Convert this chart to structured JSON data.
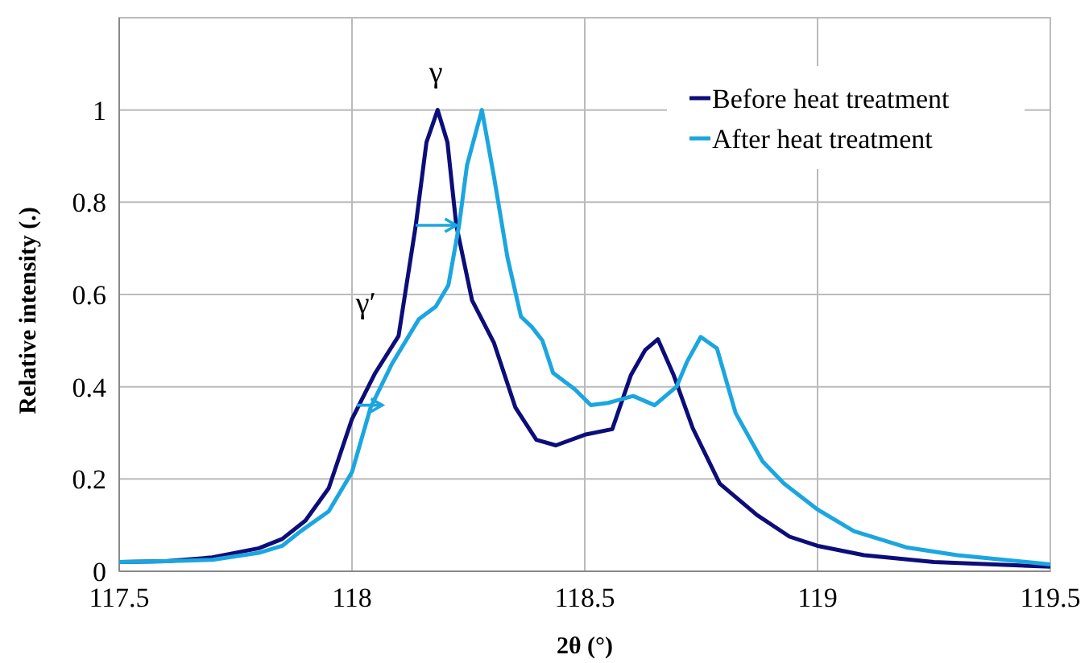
{
  "chart_data": {
    "type": "line",
    "xlabel": "2θ (°)",
    "ylabel": "Relative intensity (.)",
    "xlim": [
      117.5,
      119.5
    ],
    "xticks": [
      117.5,
      118,
      118.5,
      119,
      119.5
    ],
    "ylim": [
      0,
      1.2
    ],
    "yticks": [
      0,
      0.2,
      0.4,
      0.6,
      0.8,
      1
    ],
    "grid": true,
    "legend": "top right",
    "annotations": [
      "γ",
      "γ′"
    ],
    "series": [
      {
        "name": "Before heat treatment",
        "color": "#0d0d7a",
        "x": [
          117.5,
          117.6,
          117.7,
          117.8,
          117.85,
          117.9,
          117.95,
          118.0,
          118.05,
          118.1,
          118.137,
          118.16,
          118.184,
          118.205,
          118.224,
          118.258,
          118.305,
          118.351,
          118.396,
          118.438,
          118.5,
          118.559,
          118.599,
          118.63,
          118.657,
          118.691,
          118.732,
          118.79,
          118.87,
          118.94,
          119.0,
          119.1,
          119.25,
          119.5
        ],
        "values": [
          0.02,
          0.022,
          0.03,
          0.05,
          0.07,
          0.11,
          0.18,
          0.33,
          0.43,
          0.51,
          0.75,
          0.93,
          1.0,
          0.93,
          0.75,
          0.587,
          0.495,
          0.355,
          0.285,
          0.273,
          0.296,
          0.308,
          0.425,
          0.48,
          0.503,
          0.425,
          0.31,
          0.19,
          0.122,
          0.075,
          0.055,
          0.035,
          0.02,
          0.01
        ]
      },
      {
        "name": "After heat treatment",
        "color": "#1ba6e0",
        "x": [
          117.5,
          117.6,
          117.7,
          117.8,
          117.85,
          117.89,
          117.95,
          118.0,
          118.04,
          118.086,
          118.144,
          118.18,
          118.207,
          118.23,
          118.247,
          118.279,
          118.305,
          118.334,
          118.363,
          118.386,
          118.409,
          118.432,
          118.478,
          118.513,
          118.55,
          118.604,
          118.65,
          118.697,
          118.72,
          118.749,
          118.784,
          118.824,
          118.882,
          118.928,
          119.0,
          119.078,
          119.19,
          119.3,
          119.5
        ],
        "values": [
          0.02,
          0.022,
          0.025,
          0.04,
          0.055,
          0.087,
          0.13,
          0.215,
          0.355,
          0.45,
          0.547,
          0.574,
          0.62,
          0.75,
          0.88,
          1.0,
          0.855,
          0.68,
          0.552,
          0.53,
          0.5,
          0.43,
          0.395,
          0.36,
          0.365,
          0.38,
          0.36,
          0.4,
          0.455,
          0.508,
          0.483,
          0.343,
          0.238,
          0.19,
          0.134,
          0.087,
          0.052,
          0.035,
          0.015
        ]
      }
    ]
  }
}
